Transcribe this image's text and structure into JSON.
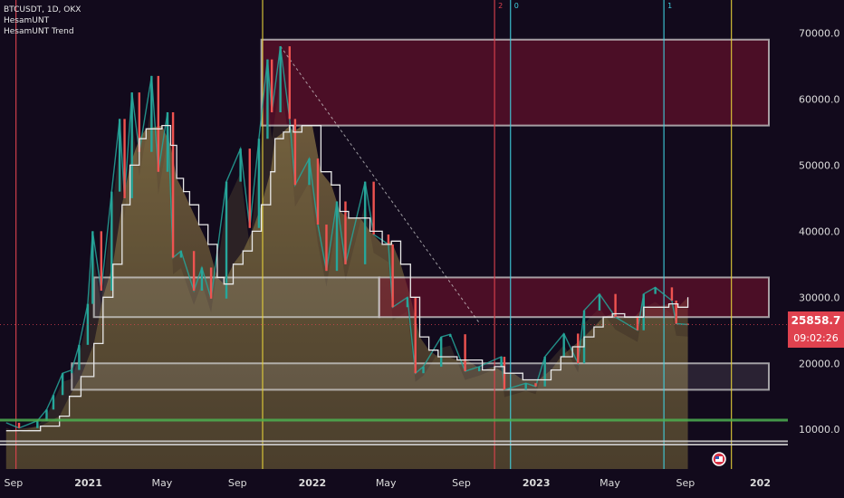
{
  "header": {
    "symbol_line": "BTCUSDT, 1D, OKX",
    "indicator_1": "HesamUNT",
    "indicator_2": "HesamUNT Trend"
  },
  "price_tag": {
    "price": "25858.7",
    "countdown": "09:02:26"
  },
  "colors": {
    "background": "#120a1c",
    "candle_up": "#26a69a",
    "candle_down": "#ef5350",
    "trend_line": "#e8e8e8",
    "zone_red": "#7a1230",
    "zone_gray": "#cfcfcf",
    "support_green": "#4caf50",
    "price_tag": "#e0424f",
    "vline_yellow": "#e6d23a",
    "vline_red": "#e0424f",
    "vline_cyan": "#3fd0e0"
  },
  "chart_data": {
    "type": "line",
    "title": "BTCUSDT, 1D, OKX",
    "y_axis": {
      "min": 4000,
      "max": 75000,
      "ticks": [
        "10000.0",
        "20000.0",
        "30000.0",
        "40000.0",
        "50000.0",
        "60000.0",
        "70000.0"
      ],
      "tick_values": [
        10000,
        20000,
        30000,
        40000,
        50000,
        60000,
        70000
      ]
    },
    "x_axis": {
      "labels": [
        "Sep",
        "2021",
        "May",
        "Sep",
        "2022",
        "May",
        "Sep",
        "2023",
        "May",
        "Sep",
        "202"
      ],
      "label_dates": [
        "2020-09-01",
        "2021-01-01",
        "2021-05-01",
        "2021-09-01",
        "2022-01-01",
        "2022-05-01",
        "2022-09-01",
        "2023-01-01",
        "2023-05-01",
        "2023-09-01",
        "2024-01-01"
      ]
    },
    "series": [
      {
        "role": "price",
        "points": [
          [
            "2020-08-20",
            11000
          ],
          [
            "2020-09-10",
            10200
          ],
          [
            "2020-10-10",
            11300
          ],
          [
            "2020-10-25",
            13000
          ],
          [
            "2020-11-05",
            15200
          ],
          [
            "2020-11-20",
            18500
          ],
          [
            "2020-12-05",
            19000
          ],
          [
            "2020-12-17",
            22800
          ],
          [
            "2020-12-31",
            29000
          ],
          [
            "2021-01-08",
            40000
          ],
          [
            "2021-01-22",
            31000
          ],
          [
            "2021-02-08",
            46000
          ],
          [
            "2021-02-21",
            57000
          ],
          [
            "2021-03-01",
            45000
          ],
          [
            "2021-03-13",
            61000
          ],
          [
            "2021-03-25",
            52000
          ],
          [
            "2021-04-14",
            63500
          ],
          [
            "2021-04-25",
            49000
          ],
          [
            "2021-05-10",
            58000
          ],
          [
            "2021-05-19",
            36000
          ],
          [
            "2021-06-01",
            37000
          ],
          [
            "2021-06-22",
            31000
          ],
          [
            "2021-07-05",
            34500
          ],
          [
            "2021-07-20",
            29800
          ],
          [
            "2021-08-14",
            47500
          ],
          [
            "2021-09-06",
            52500
          ],
          [
            "2021-09-21",
            40500
          ],
          [
            "2021-10-06",
            54000
          ],
          [
            "2021-10-20",
            66000
          ],
          [
            "2021-10-27",
            58000
          ],
          [
            "2021-11-10",
            68000
          ],
          [
            "2021-11-25",
            57000
          ],
          [
            "2021-12-04",
            47000
          ],
          [
            "2021-12-27",
            51000
          ],
          [
            "2022-01-10",
            41000
          ],
          [
            "2022-01-24",
            34000
          ],
          [
            "2022-02-10",
            44500
          ],
          [
            "2022-02-24",
            35000
          ],
          [
            "2022-03-28",
            47500
          ],
          [
            "2022-04-11",
            39500
          ],
          [
            "2022-05-05",
            38000
          ],
          [
            "2022-05-12",
            28500
          ],
          [
            "2022-06-05",
            30000
          ],
          [
            "2022-06-18",
            18500
          ],
          [
            "2022-07-01",
            19500
          ],
          [
            "2022-07-30",
            24000
          ],
          [
            "2022-08-14",
            24400
          ],
          [
            "2022-09-07",
            18800
          ],
          [
            "2022-09-30",
            19500
          ],
          [
            "2022-11-05",
            21000
          ],
          [
            "2022-11-10",
            16000
          ],
          [
            "2022-12-15",
            17000
          ],
          [
            "2022-12-31",
            16500
          ],
          [
            "2023-01-15",
            21000
          ],
          [
            "2023-02-15",
            24500
          ],
          [
            "2023-03-10",
            20000
          ],
          [
            "2023-03-20",
            28000
          ],
          [
            "2023-04-14",
            30500
          ],
          [
            "2023-05-10",
            27000
          ],
          [
            "2023-06-15",
            25000
          ],
          [
            "2023-06-25",
            30500
          ],
          [
            "2023-07-14",
            31500
          ],
          [
            "2023-08-10",
            29500
          ],
          [
            "2023-08-17",
            26000
          ],
          [
            "2023-09-05",
            25858.7
          ]
        ]
      },
      {
        "role": "trend",
        "points": [
          [
            "2020-08-20",
            9800
          ],
          [
            "2020-10-15",
            10500
          ],
          [
            "2020-11-15",
            12000
          ],
          [
            "2020-12-01",
            15000
          ],
          [
            "2020-12-20",
            18000
          ],
          [
            "2021-01-10",
            23000
          ],
          [
            "2021-01-25",
            30000
          ],
          [
            "2021-02-10",
            35000
          ],
          [
            "2021-02-25",
            44000
          ],
          [
            "2021-03-10",
            50000
          ],
          [
            "2021-03-25",
            54000
          ],
          [
            "2021-04-05",
            55500
          ],
          [
            "2021-05-01",
            56000
          ],
          [
            "2021-05-15",
            53000
          ],
          [
            "2021-05-25",
            48000
          ],
          [
            "2021-06-05",
            46000
          ],
          [
            "2021-06-15",
            44000
          ],
          [
            "2021-06-30",
            41000
          ],
          [
            "2021-07-15",
            38000
          ],
          [
            "2021-07-30",
            33000
          ],
          [
            "2021-08-10",
            32000
          ],
          [
            "2021-08-25",
            35000
          ],
          [
            "2021-09-10",
            37000
          ],
          [
            "2021-09-25",
            40000
          ],
          [
            "2021-10-10",
            44000
          ],
          [
            "2021-10-25",
            49000
          ],
          [
            "2021-11-01",
            54000
          ],
          [
            "2021-11-15",
            55000
          ],
          [
            "2021-11-25",
            56000
          ],
          [
            "2021-12-01",
            55000
          ],
          [
            "2021-12-15",
            56000
          ],
          [
            "2022-01-01",
            56000
          ],
          [
            "2022-01-15",
            49000
          ],
          [
            "2022-02-01",
            47000
          ],
          [
            "2022-02-15",
            43000
          ],
          [
            "2022-03-01",
            42000
          ],
          [
            "2022-03-20",
            42000
          ],
          [
            "2022-04-05",
            40000
          ],
          [
            "2022-04-25",
            38000
          ],
          [
            "2022-05-10",
            38500
          ],
          [
            "2022-05-25",
            35000
          ],
          [
            "2022-06-10",
            30000
          ],
          [
            "2022-06-25",
            24000
          ],
          [
            "2022-07-10",
            22000
          ],
          [
            "2022-07-25",
            21000
          ],
          [
            "2022-08-10",
            21000
          ],
          [
            "2022-08-25",
            20500
          ],
          [
            "2022-09-10",
            20500
          ],
          [
            "2022-10-05",
            19000
          ],
          [
            "2022-10-25",
            19500
          ],
          [
            "2022-11-10",
            18500
          ],
          [
            "2022-11-25",
            18500
          ],
          [
            "2022-12-10",
            17500
          ],
          [
            "2023-01-05",
            17500
          ],
          [
            "2023-01-25",
            19000
          ],
          [
            "2023-02-10",
            21000
          ],
          [
            "2023-03-01",
            22500
          ],
          [
            "2023-03-20",
            24000
          ],
          [
            "2023-04-05",
            25500
          ],
          [
            "2023-04-20",
            27000
          ],
          [
            "2023-05-05",
            27500
          ],
          [
            "2023-05-25",
            27000
          ],
          [
            "2023-06-10",
            27000
          ],
          [
            "2023-06-25",
            28500
          ],
          [
            "2023-07-15",
            28500
          ],
          [
            "2023-08-05",
            29000
          ],
          [
            "2023-08-20",
            28500
          ],
          [
            "2023-09-05",
            30000
          ]
        ]
      }
    ],
    "zones": [
      {
        "type": "resistance",
        "start": "2021-10-10",
        "end": "2024-01-15",
        "y1": 56000,
        "y2": 69000
      },
      {
        "type": "range",
        "start": "2021-01-10",
        "end": "2022-04-20",
        "y1": 27000,
        "y2": 33000
      },
      {
        "type": "resistance",
        "start": "2022-04-20",
        "end": "2024-01-15",
        "y1": 27000,
        "y2": 33000
      },
      {
        "type": "support",
        "start": "2020-12-05",
        "end": "2024-01-15",
        "y1": 16000,
        "y2": 20000
      }
    ],
    "levels": [
      {
        "y": 11400,
        "color": "support_green"
      },
      {
        "y": 8200,
        "color": "zone_gray"
      },
      {
        "y": 7700,
        "color": "zone_gray"
      }
    ],
    "vertical_markers": [
      {
        "date": "2020-09-05",
        "color": "vline_red",
        "label": ""
      },
      {
        "date": "2021-10-12",
        "color": "vline_yellow",
        "label": ""
      },
      {
        "date": "2022-10-25",
        "color": "vline_red",
        "label": "2"
      },
      {
        "date": "2022-11-20",
        "color": "vline_cyan",
        "label": "0"
      },
      {
        "date": "2023-07-28",
        "color": "vline_cyan",
        "label": "1"
      },
      {
        "date": "2023-11-15",
        "color": "vline_yellow",
        "label": ""
      }
    ],
    "diagonal_trendline": [
      [
        "2021-11-10",
        68000
      ],
      [
        "2022-10-01",
        26000
      ]
    ],
    "last_price": 25858.7
  }
}
